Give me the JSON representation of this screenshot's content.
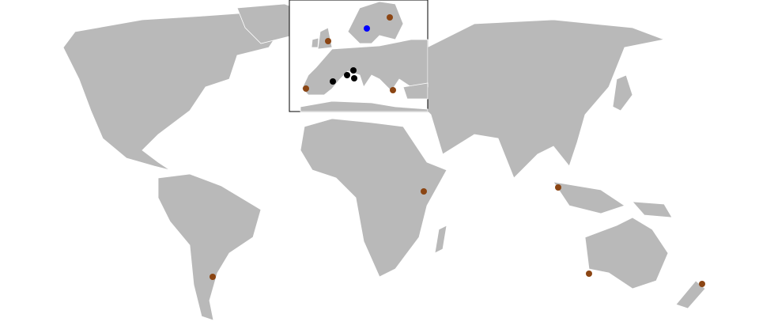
{
  "map": {
    "land_color": "#b9b9b9",
    "border_color": "#ffffff",
    "background": "#ffffff",
    "inset_region": "Europe",
    "marker_groups": [
      {
        "color": "#8b4513",
        "count": 9
      },
      {
        "color": "#0000ff",
        "count": 1
      },
      {
        "color": "#000000",
        "count": 4
      }
    ]
  }
}
